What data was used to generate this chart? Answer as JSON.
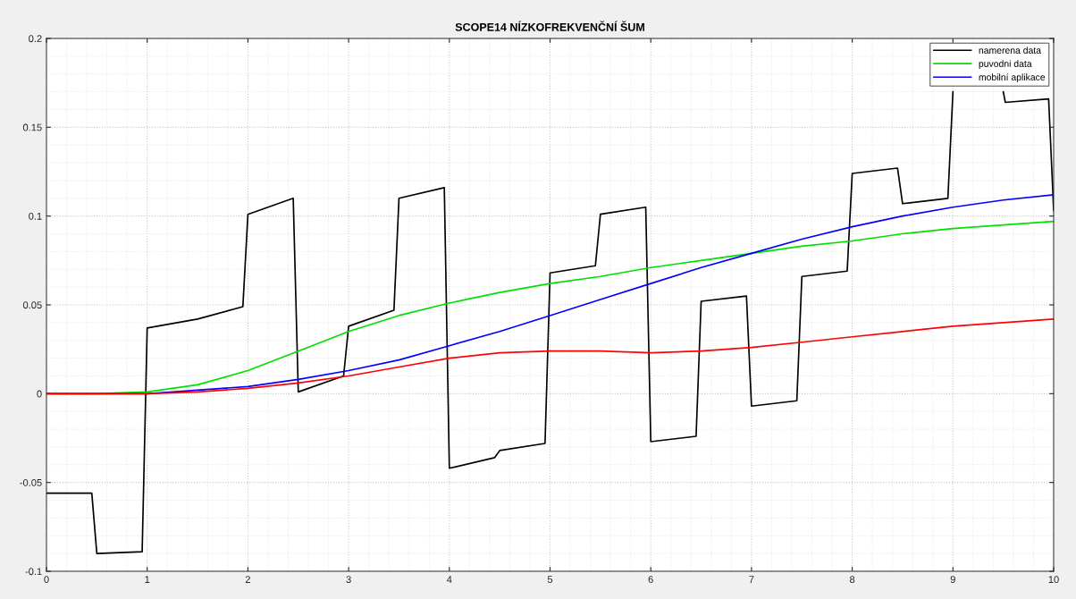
{
  "chart_data": {
    "type": "line",
    "title": "SCOPE14 NÍZKOFREKVENČNÍ ŠUM",
    "xlim": [
      0,
      10
    ],
    "ylim": [
      -0.1,
      0.2
    ],
    "xticks": [
      0,
      1,
      2,
      3,
      4,
      5,
      6,
      7,
      8,
      9,
      10
    ],
    "yticks": [
      -0.1,
      -0.05,
      0,
      0.05,
      0.1,
      0.15,
      0.2
    ],
    "grid": true,
    "legend": "top right",
    "line_style": "solid",
    "series": [
      {
        "name": "namerena data",
        "color": "#000000",
        "x": [
          0,
          0.45,
          0.5,
          0.95,
          1.0,
          1.2,
          1.5,
          1.95,
          2.0,
          2.45,
          2.5,
          2.95,
          3.0,
          3.45,
          3.5,
          3.95,
          4.0,
          4.45,
          4.5,
          4.95,
          5.0,
          5.45,
          5.5,
          5.95,
          6.0,
          6.45,
          6.5,
          6.95,
          7.0,
          7.45,
          7.5,
          7.95,
          8.0,
          8.45,
          8.5,
          8.95,
          9.0,
          9.2,
          9.5,
          9.52,
          9.95,
          10.0
        ],
        "values": [
          -0.056,
          -0.056,
          -0.09,
          -0.089,
          0.037,
          0.039,
          0.042,
          0.049,
          0.101,
          0.11,
          0.001,
          0.01,
          0.038,
          0.047,
          0.11,
          0.116,
          -0.042,
          -0.036,
          -0.032,
          -0.028,
          0.068,
          0.072,
          0.101,
          0.105,
          -0.027,
          -0.024,
          0.052,
          0.055,
          -0.007,
          -0.004,
          0.066,
          0.069,
          0.124,
          0.127,
          0.107,
          0.11,
          0.17,
          null,
          0.17,
          0.164,
          0.166,
          0.103
        ]
      },
      {
        "name": "puvodni data",
        "color": "#00e000",
        "x": [
          0,
          0.5,
          1,
          1.5,
          2,
          2.5,
          3,
          3.5,
          4,
          4.5,
          5,
          5.5,
          6,
          6.5,
          7,
          7.5,
          8,
          8.5,
          9,
          9.5,
          10
        ],
        "values": [
          0,
          0,
          0.001,
          0.005,
          0.013,
          0.024,
          0.035,
          0.044,
          0.051,
          0.057,
          0.062,
          0.066,
          0.071,
          0.075,
          0.079,
          0.083,
          0.086,
          0.09,
          0.093,
          0.095,
          0.097
        ]
      },
      {
        "name": "mobilní aplikace",
        "color": "#0000ff",
        "x": [
          0,
          0.5,
          1,
          1.5,
          2,
          2.5,
          3,
          3.5,
          4,
          4.5,
          5,
          5.5,
          6,
          6.5,
          7,
          7.5,
          8,
          8.5,
          9,
          9.5,
          10
        ],
        "values": [
          0,
          0,
          0,
          0.002,
          0.004,
          0.008,
          0.013,
          0.019,
          0.027,
          0.035,
          0.044,
          0.053,
          0.062,
          0.071,
          0.079,
          0.087,
          0.094,
          0.1,
          0.105,
          0.109,
          0.112
        ]
      },
      {
        "color": "#ff0000",
        "x": [
          0,
          0.5,
          1,
          1.5,
          2,
          2.5,
          3,
          3.5,
          4,
          4.5,
          5,
          5.5,
          6,
          6.5,
          7,
          7.5,
          8,
          8.5,
          9,
          9.5,
          10
        ],
        "values": [
          0,
          0,
          0,
          0.001,
          0.003,
          0.006,
          0.01,
          0.015,
          0.02,
          0.023,
          0.024,
          0.024,
          0.023,
          0.024,
          0.026,
          0.029,
          0.032,
          0.035,
          0.038,
          0.04,
          0.042
        ]
      }
    ]
  }
}
